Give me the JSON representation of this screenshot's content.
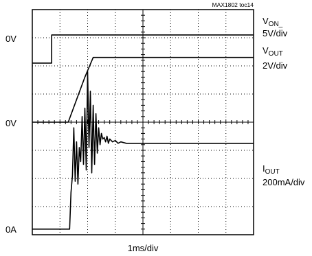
{
  "chart_data": {
    "type": "line",
    "title": "MAX1802 toc14",
    "xlabel": "1ms/div",
    "grid": true,
    "grid_divisions": {
      "x": 8,
      "y": 8
    },
    "left_markers": [
      "0V",
      "0V",
      "0A"
    ],
    "series": [
      {
        "name": "V_ON_",
        "label_main": "V",
        "label_sub": "ON_",
        "scale": "5V/div",
        "reference_label": "0V",
        "baseline_div": 6.1,
        "x": [
          0,
          0.7,
          0.7,
          8
        ],
        "y": [
          0,
          0,
          1,
          1
        ]
      },
      {
        "name": "V_OUT",
        "label_main": "V",
        "label_sub": "OUT",
        "scale": "2V/div",
        "reference_label": "0V",
        "baseline_div": 4.0,
        "x": [
          0,
          1.3,
          1.6,
          1.9,
          2.2,
          8
        ],
        "y": [
          0,
          0,
          0.8,
          1.6,
          2.3,
          2.3
        ]
      },
      {
        "name": "I_OUT",
        "label_main": "I",
        "label_sub": "OUT",
        "scale": "200mA/div",
        "reference_label": "0A",
        "baseline_div": 0.2,
        "x": [
          0,
          1.35,
          1.4,
          1.45,
          1.5,
          1.55,
          1.6,
          1.65,
          1.7,
          1.75,
          1.8,
          1.85,
          1.9,
          1.95,
          2.0,
          2.05,
          2.1,
          2.15,
          2.2,
          2.25,
          2.3,
          2.35,
          2.4,
          2.45,
          2.5,
          2.55,
          2.6,
          2.65,
          2.7,
          2.75,
          2.8,
          2.9,
          3.0,
          3.1,
          3.2,
          3.4,
          3.6,
          8
        ],
        "y": [
          0,
          0,
          1.3,
          1.9,
          3.6,
          1.7,
          3.1,
          1.6,
          2.9,
          2.4,
          4.0,
          2.3,
          4.3,
          2.1,
          5.6,
          2.9,
          4.9,
          2.0,
          4.4,
          2.3,
          4.1,
          2.7,
          3.6,
          3.0,
          3.4,
          3.2,
          3.25,
          3.1,
          3.3,
          3.05,
          3.2,
          3.1,
          3.15,
          3.05,
          3.1,
          3.05,
          3.05,
          3.05
        ]
      }
    ]
  }
}
